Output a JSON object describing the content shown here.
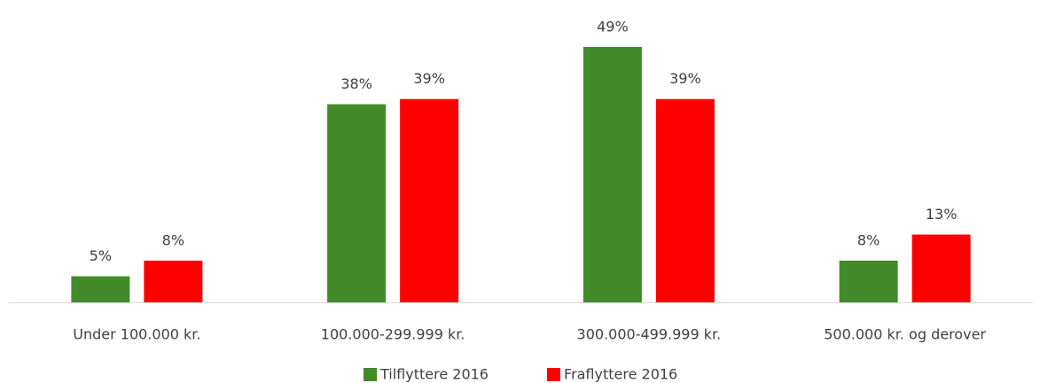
{
  "chart_data": {
    "type": "bar",
    "categories": [
      "Under 100.000 kr.",
      "100.000-299.999 kr.",
      "300.000-499.999 kr.",
      "500.000 kr. og derover"
    ],
    "series": [
      {
        "name": "Tilflyttere 2016",
        "color": "#438a2b",
        "values": [
          5,
          38,
          49,
          8
        ],
        "value_labels": [
          "5%",
          "38%",
          "49%",
          "8%"
        ]
      },
      {
        "name": "Fraflyttere 2016",
        "color": "#ff0000",
        "values": [
          8,
          39,
          39,
          13
        ],
        "value_labels": [
          "8%",
          "39%",
          "39%",
          "13%"
        ]
      }
    ],
    "legend": "bottom"
  }
}
